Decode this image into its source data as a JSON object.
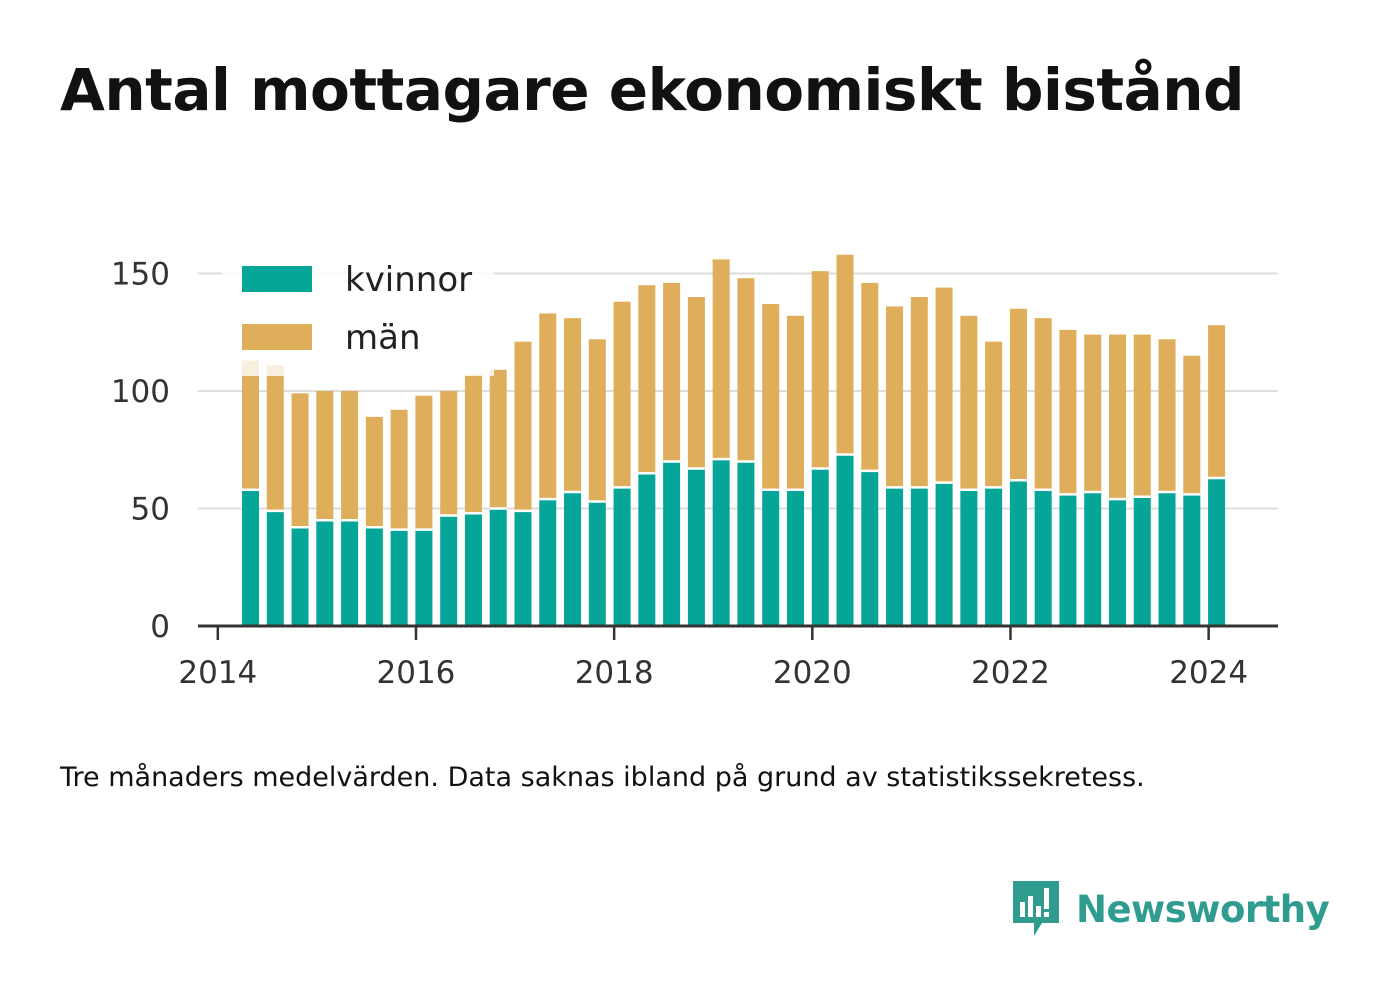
{
  "title": "Antal mottagare ekonomiskt bistånd",
  "caption": "Tre månaders medelvärden. Data saknas ibland på grund av statistikssekretess.",
  "brand": {
    "name": "Newsworthy",
    "icon": "newsworthy-logo-icon",
    "color": "#2f9c8f"
  },
  "chart_data": {
    "type": "bar",
    "stacked": true,
    "title": "Antal mottagare ekonomiskt bistånd",
    "xlabel": "",
    "ylabel": "",
    "ylim": [
      0,
      160
    ],
    "xlim": [
      2013.8,
      2024.7
    ],
    "yticks": [
      0,
      50,
      100,
      150
    ],
    "xticks": [
      2014,
      2016,
      2018,
      2020,
      2022,
      2024
    ],
    "grid": "horizontal",
    "legend_position": "top-left",
    "x": [
      2014.33,
      2014.58,
      2014.83,
      2015.08,
      2015.33,
      2015.58,
      2015.83,
      2016.08,
      2016.33,
      2016.58,
      2016.83,
      2017.08,
      2017.33,
      2017.58,
      2017.83,
      2018.08,
      2018.33,
      2018.58,
      2018.83,
      2019.08,
      2019.33,
      2019.58,
      2019.83,
      2020.08,
      2020.33,
      2020.58,
      2020.83,
      2021.08,
      2021.33,
      2021.58,
      2021.83,
      2022.08,
      2022.33,
      2022.58,
      2022.83,
      2023.08,
      2023.33,
      2023.58,
      2023.83,
      2024.08
    ],
    "series": [
      {
        "name": "kvinnor",
        "color": "#05a597",
        "values": [
          58,
          49,
          42,
          45,
          45,
          42,
          41,
          41,
          47,
          48,
          50,
          49,
          54,
          57,
          53,
          59,
          65,
          70,
          67,
          71,
          70,
          58,
          58,
          67,
          73,
          66,
          59,
          59,
          61,
          58,
          59,
          62,
          58,
          56,
          57,
          54,
          55,
          57,
          56,
          63
        ]
      },
      {
        "name": "män",
        "color": "#deae5a",
        "values": [
          55,
          62,
          57,
          55,
          55,
          47,
          51,
          57,
          53,
          59,
          59,
          72,
          79,
          74,
          69,
          79,
          80,
          76,
          73,
          85,
          78,
          79,
          74,
          84,
          85,
          80,
          77,
          81,
          83,
          74,
          62,
          73,
          73,
          70,
          67,
          70,
          69,
          65,
          59,
          65
        ]
      }
    ]
  }
}
